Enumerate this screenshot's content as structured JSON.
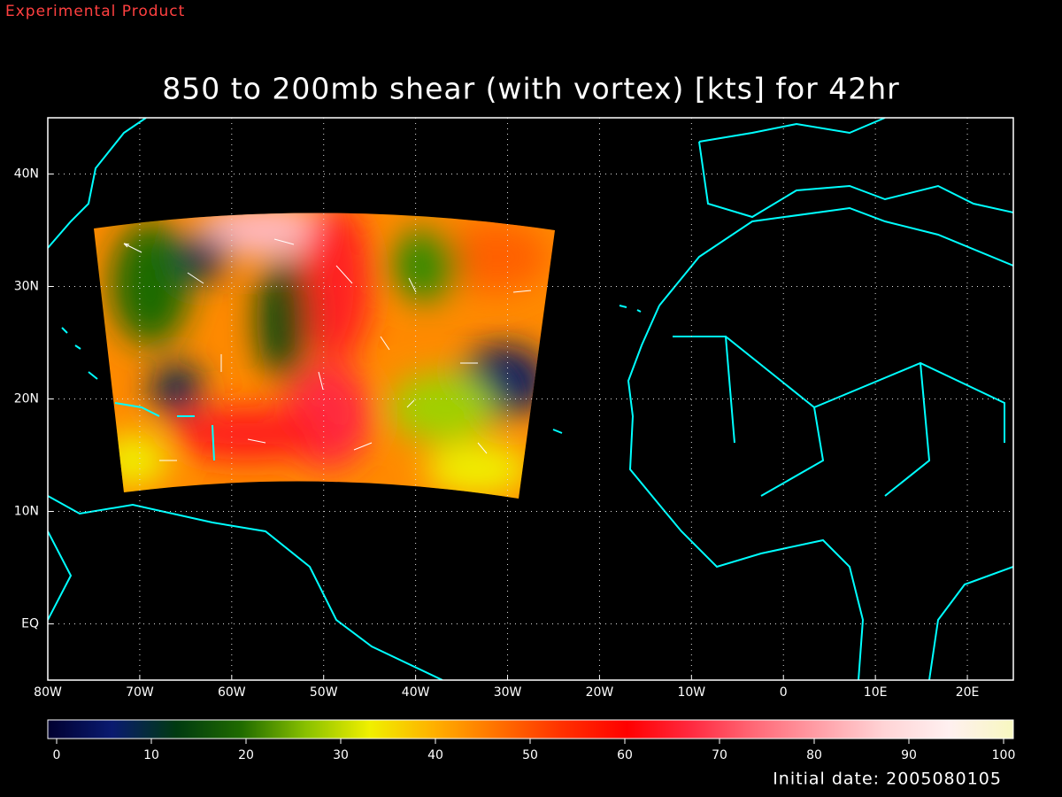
{
  "watermark": "Experimental Product",
  "chart_data": {
    "type": "map",
    "title": "850 to 200mb shear (with vortex) [kts] for 42hr",
    "xlim": [
      -80,
      25
    ],
    "ylim": [
      -5,
      45
    ],
    "xticks": [
      {
        "value": -80,
        "label": "80W"
      },
      {
        "value": -70,
        "label": "70W"
      },
      {
        "value": -60,
        "label": "60W"
      },
      {
        "value": -50,
        "label": "50W"
      },
      {
        "value": -40,
        "label": "40W"
      },
      {
        "value": -30,
        "label": "30W"
      },
      {
        "value": -20,
        "label": "20W"
      },
      {
        "value": -10,
        "label": "10W"
      },
      0,
      {
        "value": 10,
        "label": "10E"
      },
      {
        "value": 20,
        "label": "20E"
      }
    ],
    "yticks": [
      {
        "value": 0,
        "label": "EQ"
      },
      {
        "value": 10,
        "label": "10N"
      },
      {
        "value": 20,
        "label": "20N"
      },
      {
        "value": 30,
        "label": "30N"
      },
      {
        "value": 40,
        "label": "40N"
      }
    ],
    "grid": true,
    "colorbar": {
      "lim": [
        0,
        100
      ],
      "ticks": [
        0,
        10,
        20,
        30,
        40,
        50,
        60,
        70,
        80,
        90,
        100
      ],
      "colors": [
        "#000030",
        "#0a1a70",
        "#003a10",
        "#1f6a00",
        "#88c000",
        "#f0f000",
        "#ffb000",
        "#ff7000",
        "#ff3000",
        "#ff0000",
        "#ff2a40",
        "#ff6a78",
        "#ffa0a8",
        "#ffd4d6",
        "#fff0f0",
        "#f8f8c0"
      ]
    },
    "footer": "Initial date: 2005080105"
  }
}
